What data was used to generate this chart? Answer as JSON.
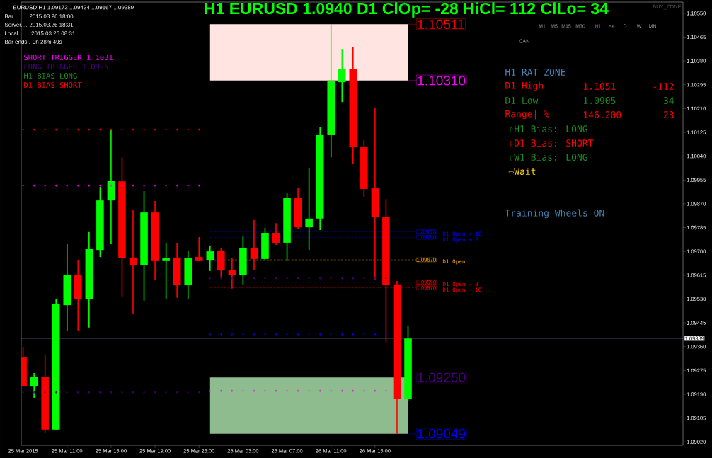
{
  "chart_data": {
    "type": "candlestick",
    "title": "H1 EURUSD 1.0940 D1 ClOp= -28 HiCl= 112 ClLo= 34",
    "x": [
      "2015-03-25T07:00",
      "2015-03-25T08:00",
      "2015-03-25T09:00",
      "2015-03-25T10:00",
      "2015-03-25T11:00",
      "2015-03-25T12:00",
      "2015-03-25T13:00",
      "2015-03-25T14:00",
      "2015-03-25T15:00",
      "2015-03-25T16:00",
      "2015-03-25T17:00",
      "2015-03-25T18:00",
      "2015-03-25T19:00",
      "2015-03-25T20:00",
      "2015-03-25T21:00",
      "2015-03-25T22:00",
      "2015-03-25T23:00",
      "2015-03-26T00:00",
      "2015-03-26T01:00",
      "2015-03-26T02:00",
      "2015-03-26T03:00",
      "2015-03-26T04:00",
      "2015-03-26T05:00",
      "2015-03-26T06:00",
      "2015-03-26T07:00",
      "2015-03-26T08:00",
      "2015-03-26T09:00",
      "2015-03-26T10:00",
      "2015-03-26T11:00",
      "2015-03-26T12:00",
      "2015-03-26T13:00",
      "2015-03-26T14:00",
      "2015-03-26T15:00",
      "2015-03-26T16:00",
      "2015-03-26T17:00",
      "2015-03-26T18:00"
    ],
    "ohlc": [
      [
        1.09321,
        1.09359,
        1.0922,
        1.0922
      ],
      [
        1.0922,
        1.09266,
        1.09177,
        1.09251
      ],
      [
        1.09253,
        1.09332,
        1.09054,
        1.09064
      ],
      [
        1.09064,
        1.09529,
        1.09061,
        1.09511
      ],
      [
        1.09508,
        1.09728,
        1.09417,
        1.09617
      ],
      [
        1.09617,
        1.0967,
        1.09417,
        1.09531
      ],
      [
        1.09529,
        1.09769,
        1.09428,
        1.09708
      ],
      [
        1.09705,
        1.0993,
        1.0968,
        1.09882
      ],
      [
        1.09882,
        1.10135,
        1.09728,
        1.09953
      ],
      [
        1.0995,
        1.10036,
        1.09539,
        1.09675
      ],
      [
        1.09678,
        1.09847,
        1.09478,
        1.09652
      ],
      [
        1.09652,
        1.09915,
        1.09524,
        1.09839
      ],
      [
        1.09839,
        1.0988,
        1.09599,
        1.09668
      ],
      [
        1.09668,
        1.09731,
        1.09529,
        1.09675
      ],
      [
        1.09678,
        1.09731,
        1.09534,
        1.09579
      ],
      [
        1.09579,
        1.09703,
        1.09529,
        1.09675
      ],
      [
        1.0968,
        1.09751,
        1.09665,
        1.09668
      ],
      [
        1.0967,
        1.09721,
        1.0963,
        1.097
      ],
      [
        1.09703,
        1.09713,
        1.09607,
        1.09632
      ],
      [
        1.09632,
        1.09675,
        1.09567,
        1.09615
      ],
      [
        1.09617,
        1.09753,
        1.09579,
        1.09713
      ],
      [
        1.09713,
        1.09812,
        1.09632,
        1.09673
      ],
      [
        1.09673,
        1.09784,
        1.0967,
        1.09766
      ],
      [
        1.09766,
        1.09801,
        1.09723,
        1.09731
      ],
      [
        1.09731,
        1.09908,
        1.09668,
        1.0989
      ],
      [
        1.0989,
        1.09928,
        1.09781,
        1.09786
      ],
      [
        1.09786,
        1.09996,
        1.09705,
        1.09817
      ],
      [
        1.09817,
        1.10145,
        1.09776,
        1.10115
      ],
      [
        1.10115,
        1.10511,
        1.10036,
        1.10307
      ],
      [
        1.10304,
        1.10423,
        1.10233,
        1.10352
      ],
      [
        1.10352,
        1.10431,
        1.10011,
        1.10072
      ],
      [
        1.10074,
        1.10097,
        1.09895,
        1.09923
      ],
      [
        1.09925,
        1.10211,
        1.09599,
        1.09822
      ],
      [
        1.09822,
        1.09887,
        1.09377,
        1.09579
      ],
      [
        1.09582,
        1.09594,
        1.09049,
        1.09172
      ],
      [
        1.09173,
        1.09434,
        1.09167,
        1.09389
      ]
    ],
    "colors": [
      "#ff0000",
      "#00ff00",
      "#ff0000",
      "#00ff00",
      "#00ff00",
      "#ff0000",
      "#00ff00",
      "#00ff00",
      "#00ff00",
      "#ff0000",
      "#ff0000",
      "#00ff00",
      "#ff0000",
      "#00ff00",
      "#ff0000",
      "#00ff00",
      "#ff0000",
      "#00ff00",
      "#ff0000",
      "#ff0000",
      "#00ff00",
      "#ff0000",
      "#00ff00",
      "#ff0000",
      "#00ff00",
      "#ff0000",
      "#00ff00",
      "#00ff00",
      "#00ff00",
      "#00ff00",
      "#ff0000",
      "#ff0000",
      "#ff0000",
      "#ff0000",
      "#ff0000",
      "#00ff00"
    ],
    "xlim": [
      "2015-03-25T06:50",
      "2015-03-27T19:00"
    ],
    "xticks": [
      {
        "value": "2015-03-25T07:00",
        "label": "25 Mar 2015"
      },
      {
        "value": "2015-03-25T11:00",
        "label": "25 Mar 11:00"
      },
      {
        "value": "2015-03-25T15:00",
        "label": "25 Mar 15:00"
      },
      {
        "value": "2015-03-25T19:00",
        "label": "25 Mar 19:00"
      },
      {
        "value": "2015-03-25T23:00",
        "label": "25 Mar 23:00"
      },
      {
        "value": "2015-03-26T03:00",
        "label": "26 Mar 03:00"
      },
      {
        "value": "2015-03-26T07:00",
        "label": "26 Mar 07:00"
      },
      {
        "value": "2015-03-26T11:00",
        "label": "26 Mar 11:00"
      },
      {
        "value": "2015-03-26T15:00",
        "label": "26 Mar 15:00"
      }
    ],
    "ylim": [
      1.09008,
      1.1059
    ],
    "yticks": [
      {
        "value": 1.0902,
        "label": "1.09020"
      },
      1.09105,
      {
        "value": 1.0919,
        "label": "1.09190"
      },
      1.09275,
      {
        "value": 1.0936,
        "label": "1.09360"
      },
      1.09445,
      {
        "value": 1.0953,
        "label": "1.09530"
      },
      1.09615,
      {
        "value": 1.097,
        "label": "1.09700"
      },
      1.09785,
      {
        "value": 1.0987,
        "label": "1.09870"
      },
      1.09955,
      {
        "value": 1.1004,
        "label": "1.10040"
      },
      1.10125,
      {
        "value": 1.1021,
        "label": "1.10210"
      },
      1.10295,
      {
        "value": 1.1038,
        "label": "1.10380"
      },
      1.10465,
      {
        "value": 1.1055,
        "label": "1.10550"
      }
    ],
    "marker": "diamond",
    "series": [
      {
        "type": "scatter",
        "color": "#ff0000",
        "x": [
          "2015-03-25T07:00",
          "2015-03-25T08:00",
          "2015-03-25T09:00",
          "2015-03-25T10:00",
          "2015-03-25T11:00",
          "2015-03-25T12:00",
          "2015-03-25T13:00",
          "2015-03-25T14:00",
          "2015-03-25T15:00",
          "2015-03-25T16:00",
          "2015-03-25T17:00",
          "2015-03-25T18:00",
          "2015-03-25T19:00",
          "2015-03-25T20:00",
          "2015-03-25T21:00",
          "2015-03-25T22:00",
          "2015-03-25T23:00"
        ],
        "values": [
          1.10135,
          1.10135,
          1.10135,
          1.10135,
          1.10135,
          1.10135,
          1.10135,
          1.10135,
          1.10135,
          1.10135,
          1.10135,
          1.10135,
          1.10135,
          1.10135,
          1.10135,
          1.10135,
          1.10135
        ]
      },
      {
        "type": "scatter",
        "color": "#ff00ff",
        "x": [
          "2015-03-25T07:00",
          "2015-03-25T08:00",
          "2015-03-25T09:00",
          "2015-03-25T10:00",
          "2015-03-25T11:00",
          "2015-03-25T12:00",
          "2015-03-25T13:00",
          "2015-03-25T14:00",
          "2015-03-25T15:00",
          "2015-03-25T16:00",
          "2015-03-25T17:00",
          "2015-03-25T18:00",
          "2015-03-25T19:00",
          "2015-03-25T20:00",
          "2015-03-25T21:00",
          "2015-03-25T22:00",
          "2015-03-25T23:00"
        ],
        "values": [
          1.09935,
          1.09935,
          1.09935,
          1.09935,
          1.09935,
          1.09935,
          1.09935,
          1.09935,
          1.09935,
          1.09935,
          1.09935,
          1.09935,
          1.09935,
          1.09935,
          1.09935,
          1.09935,
          1.09935
        ]
      },
      {
        "type": "scatter",
        "color": "#4b0082",
        "x": [
          "2015-03-25T07:00",
          "2015-03-25T08:00",
          "2015-03-25T09:00",
          "2015-03-25T10:00",
          "2015-03-25T11:00",
          "2015-03-25T12:00",
          "2015-03-25T13:00",
          "2015-03-25T14:00",
          "2015-03-25T15:00",
          "2015-03-25T16:00",
          "2015-03-25T17:00",
          "2015-03-25T18:00",
          "2015-03-25T19:00",
          "2015-03-25T20:00",
          "2015-03-25T21:00",
          "2015-03-25T22:00",
          "2015-03-25T23:00"
        ],
        "values": [
          1.09197,
          1.09197,
          1.09197,
          1.09197,
          1.09197,
          1.09197,
          1.09197,
          1.09197,
          1.09197,
          1.09197,
          1.09197,
          1.09197,
          1.09197,
          1.09197,
          1.09197,
          1.09197,
          1.09197
        ]
      },
      {
        "type": "scatter",
        "color": "#4b0082",
        "x": [
          "2015-03-26T00:00",
          "2015-03-26T01:00",
          "2015-03-26T02:00",
          "2015-03-26T03:00",
          "2015-03-26T04:00",
          "2015-03-26T05:00",
          "2015-03-26T06:00",
          "2015-03-26T07:00",
          "2015-03-26T08:00",
          "2015-03-26T09:00",
          "2015-03-26T10:00",
          "2015-03-26T11:00",
          "2015-03-26T12:00",
          "2015-03-26T13:00",
          "2015-03-26T14:00",
          "2015-03-26T15:00",
          "2015-03-26T16:00"
        ],
        "values": [
          1.09604,
          1.09604,
          1.09604,
          1.09604,
          1.09604,
          1.09604,
          1.09604,
          1.09604,
          1.09604,
          1.09604,
          1.09604,
          1.09604,
          1.09604,
          1.09604,
          1.09604,
          1.09604,
          1.09604
        ]
      },
      {
        "type": "scatter",
        "color": "#0000ff",
        "x": [
          "2015-03-26T00:00",
          "2015-03-26T01:00",
          "2015-03-26T02:00",
          "2015-03-26T03:00",
          "2015-03-26T04:00",
          "2015-03-26T05:00",
          "2015-03-26T06:00",
          "2015-03-26T07:00",
          "2015-03-26T08:00",
          "2015-03-26T09:00",
          "2015-03-26T10:00",
          "2015-03-26T11:00",
          "2015-03-26T12:00",
          "2015-03-26T13:00",
          "2015-03-26T14:00",
          "2015-03-26T15:00",
          "2015-03-26T16:00"
        ],
        "values": [
          1.09404,
          1.09404,
          1.09404,
          1.09404,
          1.09404,
          1.09404,
          1.09404,
          1.09404,
          1.09404,
          1.09404,
          1.09404,
          1.09404,
          1.09404,
          1.09404,
          1.09404,
          1.09404,
          1.09404
        ]
      },
      {
        "type": "scatter",
        "color": "#ff00ff",
        "x": [
          "2015-03-26T00:00",
          "2015-03-26T01:00",
          "2015-03-26T02:00",
          "2015-03-26T03:00",
          "2015-03-26T04:00",
          "2015-03-26T05:00",
          "2015-03-26T06:00",
          "2015-03-26T07:00",
          "2015-03-26T08:00",
          "2015-03-26T09:00",
          "2015-03-26T10:00",
          "2015-03-26T11:00",
          "2015-03-26T12:00",
          "2015-03-26T13:00",
          "2015-03-26T14:00",
          "2015-03-26T15:00",
          "2015-03-26T16:00"
        ],
        "values": [
          1.09202,
          1.09202,
          1.09202,
          1.09202,
          1.09202,
          1.09202,
          1.09202,
          1.09202,
          1.09202,
          1.09202,
          1.09202,
          1.09202,
          1.09202,
          1.09202,
          1.09202,
          1.09202,
          1.09202
        ]
      }
    ],
    "bands": [
      {
        "axis": "y",
        "from": 1.1031,
        "to": 1.10511,
        "color": "#ffe4e1"
      },
      {
        "axis": "y",
        "from": 1.09049,
        "to": 1.0925,
        "color": "#8fbc8f"
      }
    ],
    "ref_lines": [
      {
        "axis": "y",
        "value": 1.10511,
        "label": "1.10511",
        "color": "#ff0000",
        "line_style": "solid"
      },
      {
        "axis": "y",
        "value": 1.1031,
        "label": "1.10310",
        "color": "#ff00ff",
        "line_style": "solid"
      },
      {
        "axis": "y",
        "value": 1.0925,
        "label": "1.09250",
        "color": "#4b0082",
        "line_style": "solid"
      },
      {
        "axis": "y",
        "value": 1.09049,
        "label": "1.09049",
        "color": "#0000ff",
        "line_style": "solid"
      },
      {
        "axis": "y",
        "value": 1.0977,
        "label": "1.09770",
        "color": "#0000ff",
        "line_style": "dashed"
      },
      {
        "axis": "y",
        "value": 1.0975,
        "label": "1.09750",
        "color": "#0000ff",
        "line_style": "dashed"
      },
      {
        "axis": "y",
        "value": 1.0967,
        "label": "1.09670",
        "color": "#ffa500",
        "line_style": "dashed"
      },
      {
        "axis": "y",
        "value": 1.0959,
        "label": "1.09590",
        "color": "#ff0000",
        "line_style": "dashed"
      },
      {
        "axis": "y",
        "value": 1.0957,
        "label": "1.09570",
        "color": "#ff0000",
        "line_style": "dashed"
      },
      {
        "axis": "y",
        "value": 1.09389,
        "label": "1.09389",
        "color": "#778899"
      }
    ],
    "annotations": [
      "EURUSD,H1 1.09173 1.09434 1.09167 1.09389",
      "Bar......... 2015.03.26 18:00",
      "Server.... 2015.03.26 18:31",
      "Local....... 2015.03.26 08:31",
      "Bar ends.. 0h 28m 49s",
      "SHORT TRIGGER 1.1031",
      "LONG TRIGGER 1.0925",
      "H1 BIAS LONG",
      "D1 BIAS SHORT",
      "BUY_ZONE",
      "M1",
      "M5",
      "M15",
      "M30",
      "H1",
      "H4",
      "D1",
      "W1",
      "MN1",
      "CAN",
      "H1 RAT ZONE",
      "D1 High",
      "1.1051",
      "-112",
      "D1 Low",
      "1.0905",
      "34",
      "Range| %",
      "146.200",
      "23",
      "⇧H1 Bias: LONG",
      "⇩D1 Bias: SHORT",
      "⇧W1 Bias: LONG",
      "⇨Wait",
      "Training Wheels ON",
      "D1 Open + 10",
      "D1 Open + 8",
      "D1 Open",
      "D1 Open - 8",
      "D1 Open - 10"
    ]
  }
}
